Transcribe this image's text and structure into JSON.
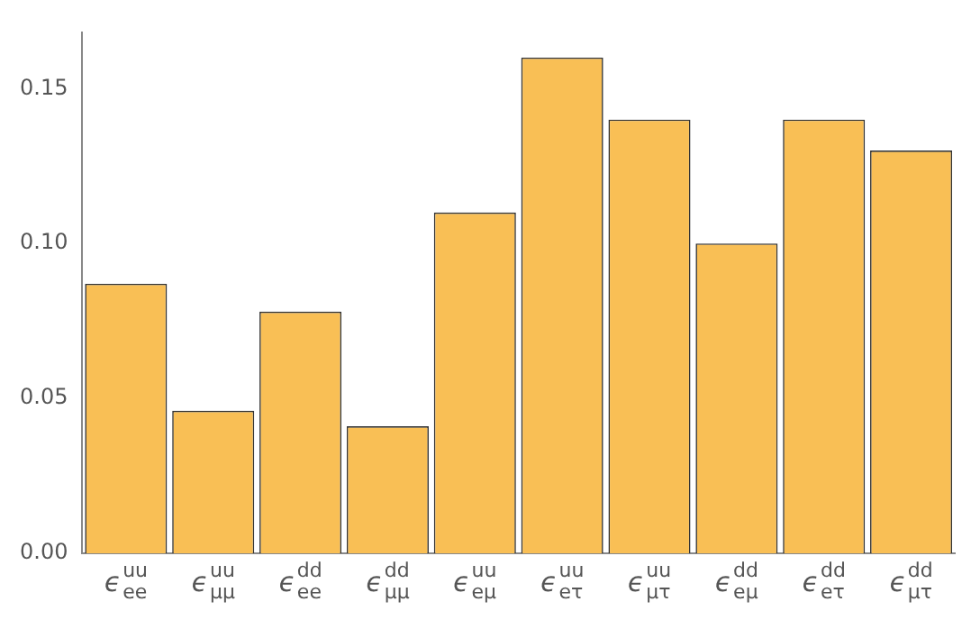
{
  "chart_data": {
    "type": "bar",
    "categories": [
      "ϵ$_{ee}$$^{uu}$",
      "ϵ$_{μμ}$$^{uu}$",
      "ϵ$_{ee}$$^{dd}$",
      "ϵ$_{μμ}$$^{dd}$",
      "ϵ$_{eμ}$$^{uu}$",
      "ϵ$_{eτ}$$^{uu}$",
      "ϵ$_{μτ}$$^{uu}$",
      "ϵ$_{eμ}$$^{dd}$",
      "ϵ$_{eτ}$$^{dd}$",
      "ϵ$_{μτ}$$^{dd}$"
    ],
    "values": [
      0.087,
      0.046,
      0.078,
      0.041,
      0.11,
      0.16,
      0.14,
      0.1,
      0.14,
      0.13
    ],
    "color": "#f9bf55",
    "ylim": [
      0,
      0.168
    ],
    "yticks": [
      {
        "value": 0,
        "label": "0.00"
      },
      {
        "value": 0.05,
        "label": "0.05"
      },
      {
        "value": 0.1,
        "label": "0.10"
      },
      {
        "value": 0.15,
        "label": "0.15"
      }
    ],
    "grid": false
  }
}
